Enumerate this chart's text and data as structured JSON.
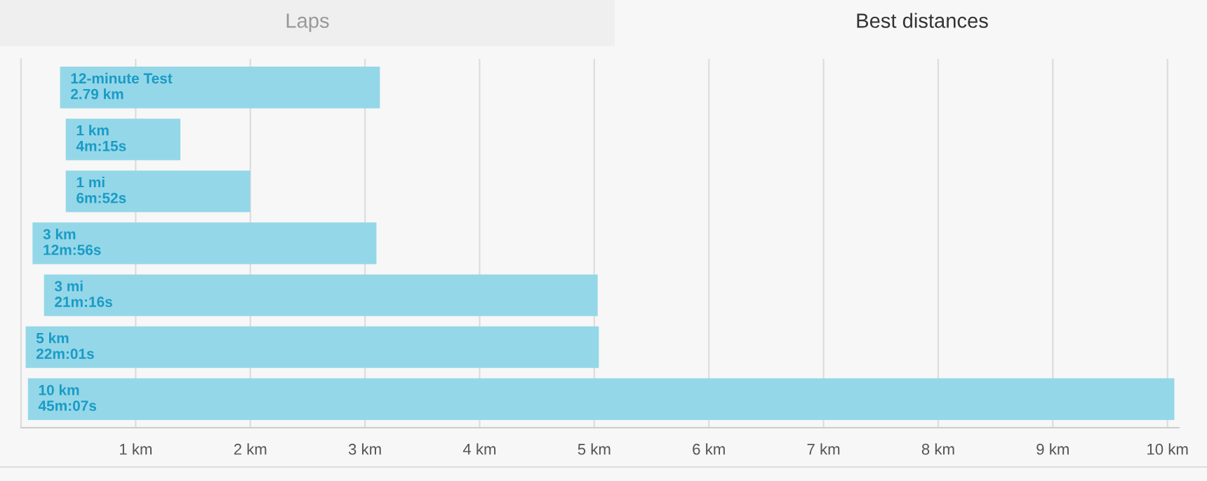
{
  "chart_data": {
    "type": "bar",
    "orientation": "horizontal",
    "annotations": [
      "Laps",
      "Best distances",
      {
        "text": "2.79 km",
        "x": 0.34,
        "y": "12-minute Test"
      },
      {
        "text": "4m:15s",
        "x": 0.39,
        "y": "1 km"
      },
      {
        "text": "6m:52s",
        "x": 0.39,
        "y": "1 mi"
      },
      {
        "text": "12m:56s",
        "x": 0.1,
        "y": "3 km"
      },
      {
        "text": "21m:16s",
        "x": 0.2,
        "y": "3 mi"
      },
      {
        "text": "22m:01s",
        "x": 0.04,
        "y": "5 km"
      },
      {
        "text": "45m:07s",
        "x": 0.06,
        "y": "10 km"
      }
    ],
    "categories": [
      "12-minute Test",
      "1 km",
      "1 mi",
      "3 km",
      "3 mi",
      "5 km",
      "10 km"
    ],
    "base": [
      0.34,
      0.39,
      0.39,
      0.1,
      0.2,
      0.04,
      0.06
    ],
    "values": [
      2.79,
      1,
      1.61,
      3,
      4.83,
      5,
      10
    ],
    "color": "#94d7e8",
    "xlim": [
      0,
      10.1
    ],
    "xticks": [
      {
        "value": 1,
        "label": "1 km"
      },
      {
        "value": 2,
        "label": "2 km"
      },
      {
        "value": 3,
        "label": "3 km"
      },
      {
        "value": 4,
        "label": "4 km"
      },
      {
        "value": 5,
        "label": "5 km"
      },
      {
        "value": 6,
        "label": "6 km"
      },
      {
        "value": 7,
        "label": "7 km"
      },
      {
        "value": 8,
        "label": "8 km"
      },
      {
        "value": 9,
        "label": "9 km"
      },
      {
        "value": 10,
        "label": "10 km"
      }
    ],
    "grid": "x"
  }
}
